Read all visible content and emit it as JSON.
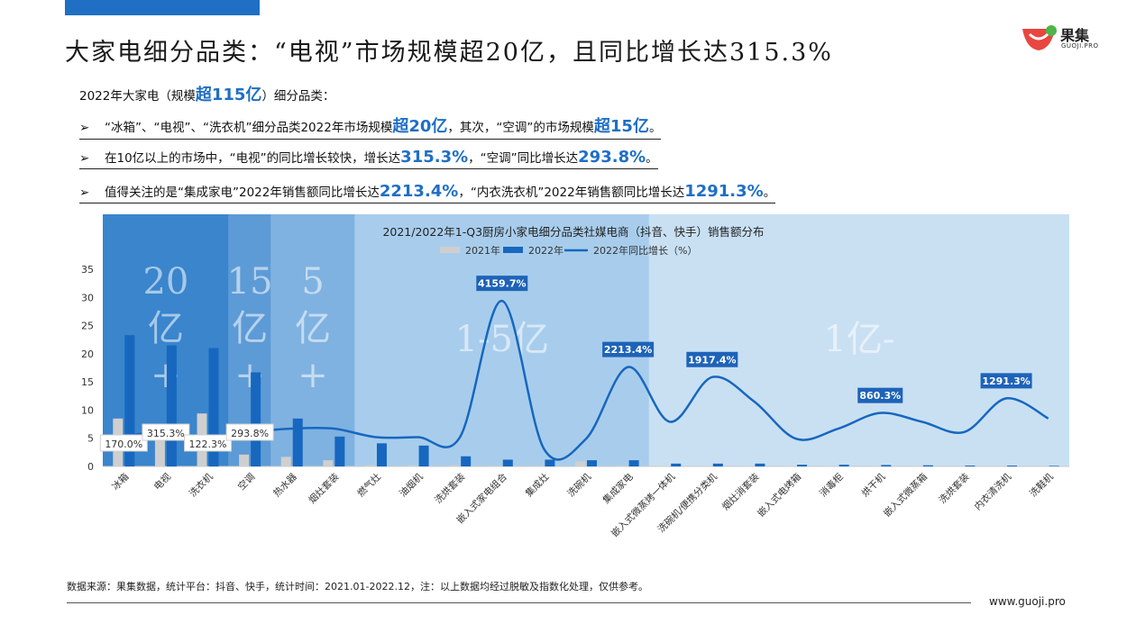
{
  "title": "大家电细分品类：“电视”市场规模超20亿，且同比增长达315.3%",
  "logo": {
    "name": "果集",
    "sub": "GUOJI.PRO"
  },
  "intro": {
    "prefix": "2022年大家电（规模",
    "highlight": "超115亿",
    "suffix": "）细分品类："
  },
  "bullets": [
    {
      "arrow": "➢",
      "parts": [
        {
          "t": "“冰箱”、“电视”、“洗衣机”细分品类2022年市场规模"
        },
        {
          "t": "超20亿",
          "hl": true
        },
        {
          "t": "，其次，“空调”的市场规模"
        },
        {
          "t": "超15亿",
          "hl": true
        },
        {
          "t": "。"
        }
      ]
    },
    {
      "arrow": "➢",
      "parts": [
        {
          "t": "在10亿以上的市场中，“电视”的同比增长较快，增长达"
        },
        {
          "t": "315.3%",
          "hl": true
        },
        {
          "t": "，“空调”同比增长达"
        },
        {
          "t": "293.8%",
          "hl": true
        },
        {
          "t": "。"
        }
      ]
    },
    {
      "arrow": "➢",
      "parts": [
        {
          "t": "值得关注的是“集成家电”2022年销售额同比增长达"
        },
        {
          "t": "2213.4%",
          "hl": true
        },
        {
          "t": "，“内衣洗衣机”2022年销售额同比增长达"
        },
        {
          "t": "1291.3%",
          "hl": true
        },
        {
          "t": "。"
        }
      ]
    }
  ],
  "chart_data": {
    "type": "bar",
    "title": "2021/2022年1-Q3厨房小家电细分品类社媒电商（抖音、快手）销售额分布",
    "legend": [
      "2021年",
      "2022年",
      "2022年同比增长（%）"
    ],
    "categories": [
      "冰箱",
      "电视",
      "洗衣机",
      "空调",
      "热水器",
      "烟灶套装",
      "燃气灶",
      "油烟机",
      "洗烘套装",
      "嵌入式家电组合",
      "集成灶",
      "洗碗机",
      "集成家电",
      "嵌入式微蒸烤一体机",
      "洗碗机/便携分类机",
      "烟灶消套装",
      "嵌入式电烤箱",
      "消毒柜",
      "烘干机",
      "嵌入式微蒸箱",
      "洗烘套装",
      "内衣清洗机",
      "洗鞋机"
    ],
    "series": [
      {
        "name": "2021年",
        "color": "#cfcfcf",
        "values": [
          8.5,
          5.2,
          9.4,
          2.1,
          1.7,
          1.1,
          0.2,
          0.2,
          0.2,
          0.1,
          0.1,
          0.9,
          0.1,
          0.1,
          0.1,
          0.1,
          0.05,
          0.05,
          0.05,
          0.05,
          0.02,
          0.02,
          0.02
        ]
      },
      {
        "name": "2022年",
        "color": "#1767bf",
        "values": [
          23.3,
          21.5,
          21.0,
          16.7,
          8.5,
          5.3,
          4.1,
          3.7,
          1.8,
          1.2,
          1.2,
          1.1,
          1.1,
          0.5,
          0.5,
          0.5,
          0.3,
          0.3,
          0.25,
          0.2,
          0.15,
          0.15,
          0.1
        ]
      },
      {
        "name": "2022年同比增长（%）",
        "color": "#1767bf",
        "values": [
          170.0,
          315.3,
          122.3,
          293.8,
          400,
          400,
          150,
          150,
          150,
          4159.7,
          -200,
          100,
          2213.4,
          600,
          1917.4,
          1200,
          100,
          400,
          860.3,
          600,
          300,
          1291.3,
          700
        ]
      }
    ],
    "growth_labels": [
      {
        "index": 0,
        "text": "170.0%",
        "style": "box"
      },
      {
        "index": 1,
        "text": "315.3%",
        "style": "box"
      },
      {
        "index": 2,
        "text": "122.3%",
        "style": "box"
      },
      {
        "index": 3,
        "text": "293.8%",
        "style": "box"
      },
      {
        "index": 9,
        "text": "4159.7%",
        "style": "tag"
      },
      {
        "index": 12,
        "text": "2213.4%",
        "style": "tag"
      },
      {
        "index": 14,
        "text": "1917.4%",
        "style": "tag"
      },
      {
        "index": 18,
        "text": "860.3%",
        "style": "tag"
      },
      {
        "index": 21,
        "text": "1291.3%",
        "style": "tag"
      }
    ],
    "ylim": [
      0,
      35
    ],
    "yticks": [
      0,
      5,
      10,
      15,
      20,
      25,
      30,
      35
    ],
    "growth_range": [
      -500,
      4800
    ],
    "zones": [
      {
        "label": "20亿+",
        "from": 0,
        "to": 3,
        "color": "#3a85cc"
      },
      {
        "label": "15亿+",
        "from": 3,
        "to": 4,
        "color": "#5d9bd6"
      },
      {
        "label": "5亿+",
        "from": 4,
        "to": 6,
        "color": "#7fb2e1"
      },
      {
        "label": "1-5亿",
        "from": 6,
        "to": 13,
        "color": "#a8cdec"
      },
      {
        "label": "1亿-",
        "from": 13,
        "to": 23,
        "color": "#c9e0f3"
      }
    ]
  },
  "footer": {
    "source": "数据来源：果集数据，统计平台：抖音、快手，统计时间：2021.01-2022.12，注：以上数据均经过脱敏及指数化处理，仅供参考。",
    "url": "www.guoji.pro"
  }
}
